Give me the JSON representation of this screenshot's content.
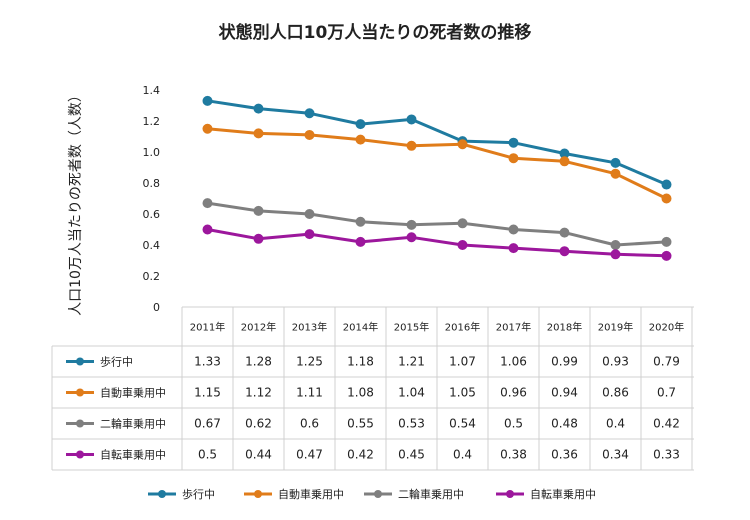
{
  "chart_data": {
    "type": "line",
    "title": "状態別人口10万人当たりの死者数の推移",
    "ylabel": "人口10万人当たりの死者数（人数）",
    "xlabel": "",
    "categories": [
      "2011年",
      "2012年",
      "2013年",
      "2014年",
      "2015年",
      "2016年",
      "2017年",
      "2018年",
      "2019年",
      "2020年"
    ],
    "ylim": [
      0,
      1.4
    ],
    "yticks": [
      "0",
      "0.2",
      "0.4",
      "0.6",
      "0.8",
      "1.0",
      "1.2",
      "1.4"
    ],
    "grid": false,
    "legend_position": "bottom",
    "data_table": true,
    "series": [
      {
        "name": "歩行中",
        "color": "#1f7ba0",
        "values": [
          1.33,
          1.28,
          1.25,
          1.18,
          1.21,
          1.07,
          1.06,
          0.99,
          0.93,
          0.79
        ],
        "labels": [
          "1.33",
          "1.28",
          "1.25",
          "1.18",
          "1.21",
          "1.07",
          "1.06",
          "0.99",
          "0.93",
          "0.79"
        ]
      },
      {
        "name": "自動車乗用中",
        "color": "#e07c1a",
        "values": [
          1.15,
          1.12,
          1.11,
          1.08,
          1.04,
          1.05,
          0.96,
          0.94,
          0.86,
          0.7
        ],
        "labels": [
          "1.15",
          "1.12",
          "1.11",
          "1.08",
          "1.04",
          "1.05",
          "0.96",
          "0.94",
          "0.86",
          "0.7"
        ]
      },
      {
        "name": "二輪車乗用中",
        "color": "#7f7f7f",
        "values": [
          0.67,
          0.62,
          0.6,
          0.55,
          0.53,
          0.54,
          0.5,
          0.48,
          0.4,
          0.42
        ],
        "labels": [
          "0.67",
          "0.62",
          "0.6",
          "0.55",
          "0.53",
          "0.54",
          "0.5",
          "0.48",
          "0.4",
          "0.42"
        ]
      },
      {
        "name": "自転車乗用中",
        "color": "#9c179c",
        "values": [
          0.5,
          0.44,
          0.47,
          0.42,
          0.45,
          0.4,
          0.38,
          0.36,
          0.34,
          0.33
        ],
        "labels": [
          "0.5",
          "0.44",
          "0.47",
          "0.42",
          "0.45",
          "0.4",
          "0.38",
          "0.36",
          "0.34",
          "0.33"
        ]
      }
    ]
  }
}
